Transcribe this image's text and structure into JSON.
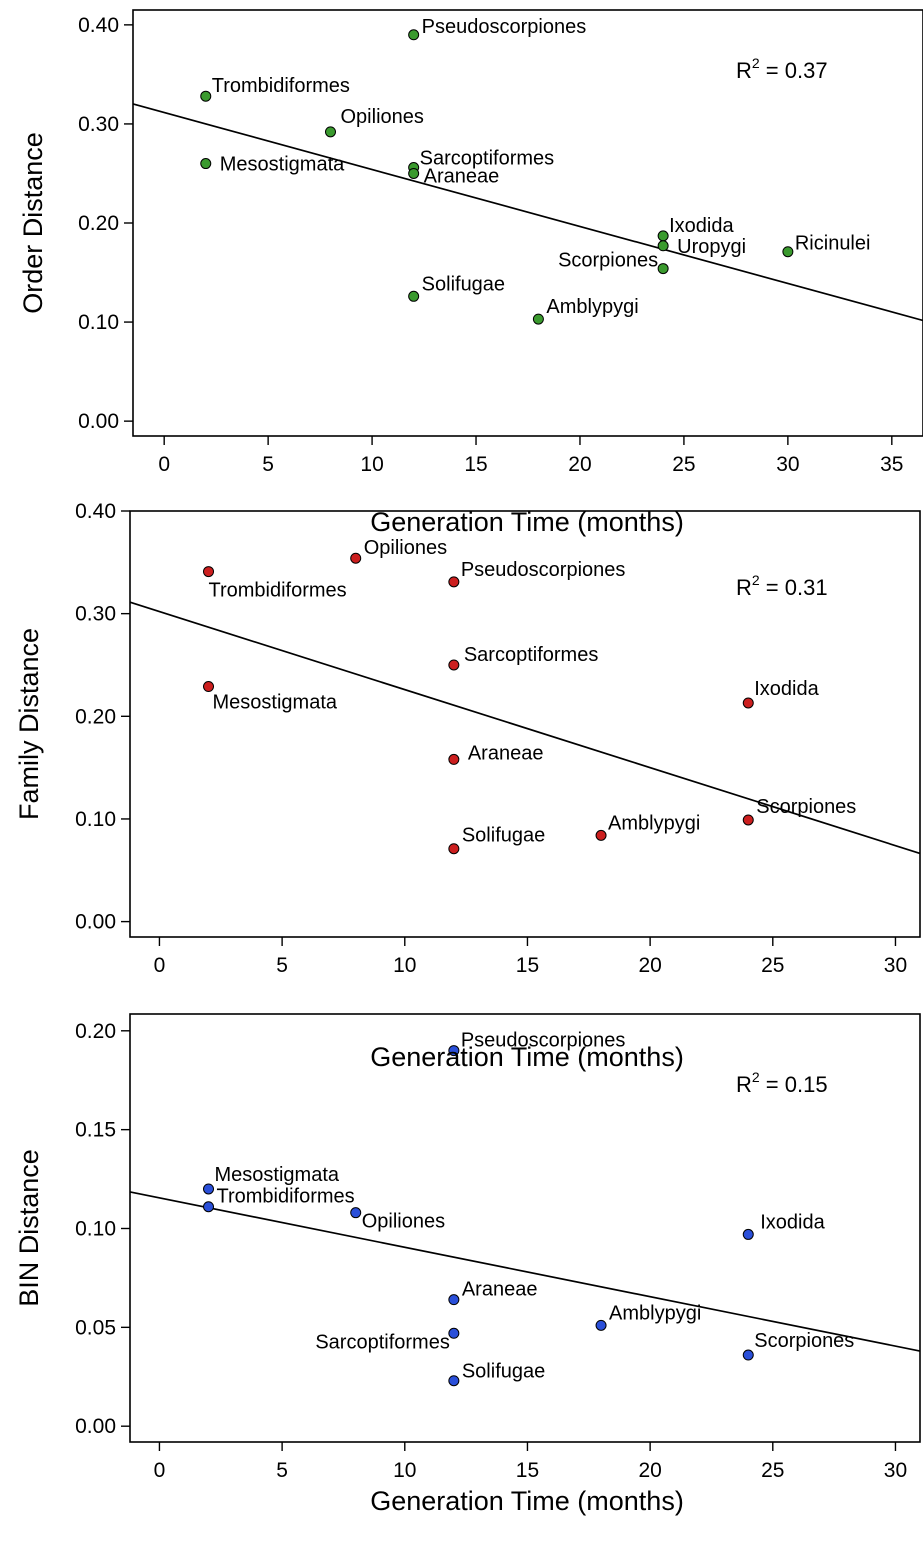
{
  "chart_data": [
    {
      "type": "scatter",
      "xlabel": "Generation Time (months)",
      "ylabel": "Order Distance",
      "xlim": [
        -1.5,
        36.5
      ],
      "ylim": [
        -0.015,
        0.415
      ],
      "xticks": [
        0,
        5,
        10,
        15,
        20,
        25,
        30,
        35
      ],
      "yticks": [
        0.0,
        0.1,
        0.2,
        0.3,
        0.4
      ],
      "ytick_labels": [
        "0.00",
        "0.10",
        "0.20",
        "0.30",
        "0.40"
      ],
      "point_color": "#3a9a2e",
      "r2_label": "R",
      "r2_sup": "2",
      "r2_value": " = 0.37",
      "fit_line": {
        "intercept": 0.3115,
        "slope": -0.00575
      },
      "points": [
        {
          "label": "Pseudoscorpiones",
          "x": 12,
          "y": 0.39
        },
        {
          "label": "Trombidiformes",
          "x": 2,
          "y": 0.328
        },
        {
          "label": "Opiliones",
          "x": 8,
          "y": 0.292
        },
        {
          "label": "Mesostigmata",
          "x": 2,
          "y": 0.26
        },
        {
          "label": "Sarcoptiformes",
          "x": 12,
          "y": 0.256
        },
        {
          "label": "Araneae",
          "x": 12,
          "y": 0.25
        },
        {
          "label": "Ixodida",
          "x": 24,
          "y": 0.187
        },
        {
          "label": "Uropygi",
          "x": 24,
          "y": 0.177
        },
        {
          "label": "Ricinulei",
          "x": 30,
          "y": 0.171
        },
        {
          "label": "Scorpiones",
          "x": 24,
          "y": 0.154
        },
        {
          "label": "Solifugae",
          "x": 12,
          "y": 0.126
        },
        {
          "label": "Amblypygi",
          "x": 18,
          "y": 0.103
        }
      ]
    },
    {
      "type": "scatter",
      "xlabel": "Generation Time (months)",
      "ylabel": "Family Distance",
      "xlim": [
        -1.2,
        31.0
      ],
      "ylim": [
        -0.015,
        0.4
      ],
      "xticks": [
        0,
        5,
        10,
        15,
        20,
        25,
        30
      ],
      "yticks": [
        0.0,
        0.1,
        0.2,
        0.3,
        0.4
      ],
      "ytick_labels": [
        "0.00",
        "0.10",
        "0.20",
        "0.30",
        "0.40"
      ],
      "point_color": "#cc1f1f",
      "r2_label": "R",
      "r2_sup": "2",
      "r2_value": " = 0.31",
      "fit_line": {
        "intercept": 0.302,
        "slope": -0.0076
      },
      "points": [
        {
          "label": "Opiliones",
          "x": 8,
          "y": 0.354
        },
        {
          "label": "Trombidiformes",
          "x": 2,
          "y": 0.341
        },
        {
          "label": "Pseudoscorpiones",
          "x": 12,
          "y": 0.331
        },
        {
          "label": "Sarcoptiformes",
          "x": 12,
          "y": 0.25
        },
        {
          "label": "Mesostigmata",
          "x": 2,
          "y": 0.229
        },
        {
          "label": "Ixodida",
          "x": 24,
          "y": 0.213
        },
        {
          "label": "Araneae",
          "x": 12,
          "y": 0.158
        },
        {
          "label": "Scorpiones",
          "x": 24,
          "y": 0.099
        },
        {
          "label": "Amblypygi",
          "x": 18,
          "y": 0.084
        },
        {
          "label": "Solifugae",
          "x": 12,
          "y": 0.071
        }
      ]
    },
    {
      "type": "scatter",
      "xlabel": "Generation Time (months)",
      "ylabel": "BIN Distance",
      "xlim": [
        -1.2,
        31.0
      ],
      "ylim": [
        -0.008,
        0.2085
      ],
      "xticks": [
        0,
        5,
        10,
        15,
        20,
        25,
        30
      ],
      "yticks": [
        0.0,
        0.05,
        0.1,
        0.15,
        0.2
      ],
      "ytick_labels": [
        "0.00",
        "0.05",
        "0.10",
        "0.15",
        "0.20"
      ],
      "point_color": "#2a4fd9",
      "r2_label": "R",
      "r2_sup": "2",
      "r2_value": " = 0.15",
      "fit_line": {
        "intercept": 0.1155,
        "slope": -0.0025
      },
      "points": [
        {
          "label": "Pseudoscorpiones",
          "x": 12,
          "y": 0.19
        },
        {
          "label": "Mesostigmata",
          "x": 2,
          "y": 0.12
        },
        {
          "label": "Trombidiformes",
          "x": 2,
          "y": 0.111
        },
        {
          "label": "Opiliones",
          "x": 8,
          "y": 0.108
        },
        {
          "label": "Ixodida",
          "x": 24,
          "y": 0.097
        },
        {
          "label": "Araneae",
          "x": 12,
          "y": 0.064
        },
        {
          "label": "Amblypygi",
          "x": 18,
          "y": 0.051
        },
        {
          "label": "Sarcoptiformes",
          "x": 12,
          "y": 0.047
        },
        {
          "label": "Scorpiones",
          "x": 24,
          "y": 0.036
        },
        {
          "label": "Solifugae",
          "x": 12,
          "y": 0.023
        }
      ]
    }
  ]
}
